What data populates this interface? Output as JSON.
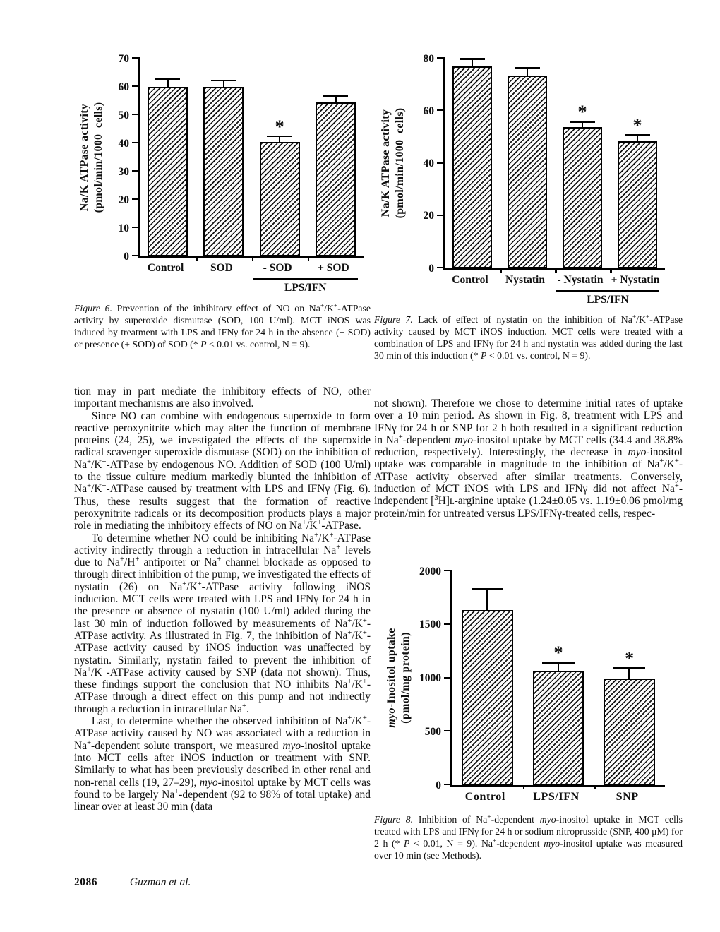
{
  "page": {
    "footer": {
      "page_number": "2086",
      "authors_html": "<i>Guzman et al.</i>"
    }
  },
  "figures": {
    "fig6": {
      "caption_html": "<i>Figure 6.</i> Prevention of the inhibitory effect of NO on Na<sup>+</sup>/K<sup>+</sup>-ATPase activity by superoxide dismutase (SOD, 100 U/ml). MCT iNOS was induced by treatment with LPS and IFNγ for 24 h in the absence (− SOD) or presence (+ SOD) of SOD (* <i>P</i> &lt; 0.01 vs. control, N = 9)."
    },
    "fig7": {
      "caption_html": "<i>Figure 7.</i> Lack of effect of nystatin on the inhibition of Na<sup>+</sup>/K<sup>+</sup>-ATPase activity caused by MCT iNOS induction. MCT cells were treated with a combination of LPS and IFNγ for 24 h and nystatin was added during the last 30 min of this induction (* <i>P</i> &lt; 0.01 vs. control, N = 9)."
    },
    "fig8": {
      "caption_html": "<i>Figure 8.</i> Inhibition of Na<sup>+</sup>-dependent <i>myo</i>-inositol uptake in MCT cells treated with LPS and IFNγ for 24 h or sodium nitroprusside (SNP, 400 μM) for 2 h (* <i>P</i> &lt; 0.01, N = 9). Na<sup>+</sup>-dependent <i>myo</i>-inositol uptake was measured over 10 min (see Methods)."
    }
  },
  "body": {
    "left_column": {
      "p1_html": "tion may in part mediate the inhibitory effects of NO, other important mechanisms are also involved.",
      "p2_html": "Since NO can combine with endogenous superoxide to form reactive peroxynitrite which may alter the function of membrane proteins (24, 25), we investigated the effects of the superoxide radical scavenger superoxide dismutase (SOD) on the inhibition of Na<sup>+</sup>/K<sup>+</sup>-ATPase by endogenous NO. Addition of SOD (100 U/ml) to the tissue culture medium markedly blunted the inhibition of Na<sup>+</sup>/K<sup>+</sup>-ATPase caused by treatment with LPS and IFNγ (Fig. 6). Thus, these results suggest that the formation of reactive peroxynitrite radicals or its decomposition products plays a major role in mediating the inhibitory effects of NO on Na<sup>+</sup>/K<sup>+</sup>-ATPase.",
      "p3_html": "To determine whether NO could be inhibiting Na<sup>+</sup>/K<sup>+</sup>-ATPase activity indirectly through a reduction in intracellular Na<sup>+</sup> levels due to Na<sup>+</sup>/H<sup>+</sup> antiporter or Na<sup>+</sup> channel blockade as opposed to through direct inhibition of the pump, we investigated the effects of nystatin (26) on Na<sup>+</sup>/K<sup>+</sup>-ATPase activity following iNOS induction. MCT cells were treated with LPS and IFNγ for 24 h in the presence or absence of nystatin (100 U/ml) added during the last 30 min of induction followed by measurements of Na<sup>+</sup>/K<sup>+</sup>-ATPase activity. As illustrated in Fig. 7, the inhibition of Na<sup>+</sup>/K<sup>+</sup>-ATPase activity caused by iNOS induction was unaffected by nystatin. Similarly, nystatin failed to prevent the inhibition of Na<sup>+</sup>/K<sup>+</sup>-ATPase activity caused by SNP (data not shown). Thus, these findings support the conclusion that NO inhibits Na<sup>+</sup>/K<sup>+</sup>-ATPase through a direct effect on this pump and not indirectly through a reduction in intracellular Na<sup>+</sup>.",
      "p4_html": "Last, to determine whether the observed inhibition of Na<sup>+</sup>/K<sup>+</sup>-ATPase activity caused by NO was associated with a reduction in Na<sup>+</sup>-dependent solute transport, we measured <i>myo</i>-inositol uptake into MCT cells after iNOS induction or treatment with SNP. Similarly to what has been previously described in other renal and non-renal cells (19, 27–29), <i>myo</i>-inositol uptake by MCT cells was found to be largely Na<sup>+</sup>-dependent (92 to 98% of total uptake) and linear over at least 30 min (data"
    },
    "right_column": {
      "p1_html": "not shown). Therefore we chose to determine initial rates of uptake over a 10 min period. As shown in Fig. 8, treatment with LPS and IFNγ for 24 h or SNP for 2 h both resulted in a significant reduction in Na<sup>+</sup>-dependent <i>myo</i>-inositol uptake by MCT cells (34.4 and 38.8% reduction, respectively). Interestingly, the decrease in <i>myo</i>-inositol uptake was comparable in magnitude to the inhibition of Na<sup>+</sup>/K<sup>+</sup>-ATPase activity observed after similar treatments. Conversely, induction of MCT iNOS with LPS and IFNγ did not affect Na<sup>+</sup>-independent [<sup>3</sup>H]ʟ-arginine uptake (1.24±0.05 vs. 1.19±0.06 pmol/mg protein/min for untreated versus LPS/IFNγ-treated cells, respec-"
    }
  },
  "chart_data": [
    {
      "type": "bar",
      "figure": "Figure 6",
      "categories": [
        "Control",
        "SOD",
        "- SOD",
        "+ SOD"
      ],
      "values": [
        60,
        60,
        40.5,
        54.5
      ],
      "errors": [
        2.5,
        2,
        1.7,
        2
      ],
      "significant": [
        false,
        false,
        true,
        false
      ],
      "ylabel_html": "Na/K ATPase activity<br>(pmol/min/1000&nbsp; cells)",
      "ylabel_text": "Na/K ATPase activity (pmol/min/1000 cells)",
      "xlabel": "",
      "ylim": [
        0,
        70
      ],
      "yticks": [
        0,
        10,
        20,
        30,
        40,
        50,
        60,
        70
      ],
      "grid": false,
      "group": {
        "label": "LPS/IFN",
        "from": 2,
        "to": 3
      }
    },
    {
      "type": "bar",
      "figure": "Figure 7",
      "categories": [
        "Control",
        "Nystatin",
        "- Nystatin",
        "+ Nystatin"
      ],
      "values": [
        77,
        73.5,
        54,
        48.5
      ],
      "errors": [
        2.5,
        2.5,
        1.5,
        2
      ],
      "significant": [
        false,
        false,
        true,
        true
      ],
      "ylabel_html": "Na/K ATPase activity<br>(pmol/min/1000&nbsp; cells)",
      "ylabel_text": "Na/K ATPase activity (pmol/min/1000 cells)",
      "xlabel": "",
      "ylim": [
        0,
        80
      ],
      "yticks": [
        0,
        20,
        40,
        60,
        80
      ],
      "grid": false,
      "group": {
        "label": "LPS/IFN",
        "from": 2,
        "to": 3
      }
    },
    {
      "type": "bar",
      "figure": "Figure 8",
      "categories": [
        "Control",
        "LPS/IFN",
        "SNP"
      ],
      "values": [
        1640,
        1070,
        1000
      ],
      "errors": [
        185,
        65,
        85
      ],
      "significant": [
        false,
        true,
        true
      ],
      "ylabel_html": "<i>myo</i>-Inositol uptake<br>(pmol/mg protein)",
      "ylabel_text": "myo-Inositol uptake (pmol/mg protein)",
      "xlabel": "",
      "ylim": [
        0,
        2000
      ],
      "yticks": [
        0,
        500,
        1000,
        1500,
        2000
      ],
      "grid": false,
      "group": null
    }
  ]
}
